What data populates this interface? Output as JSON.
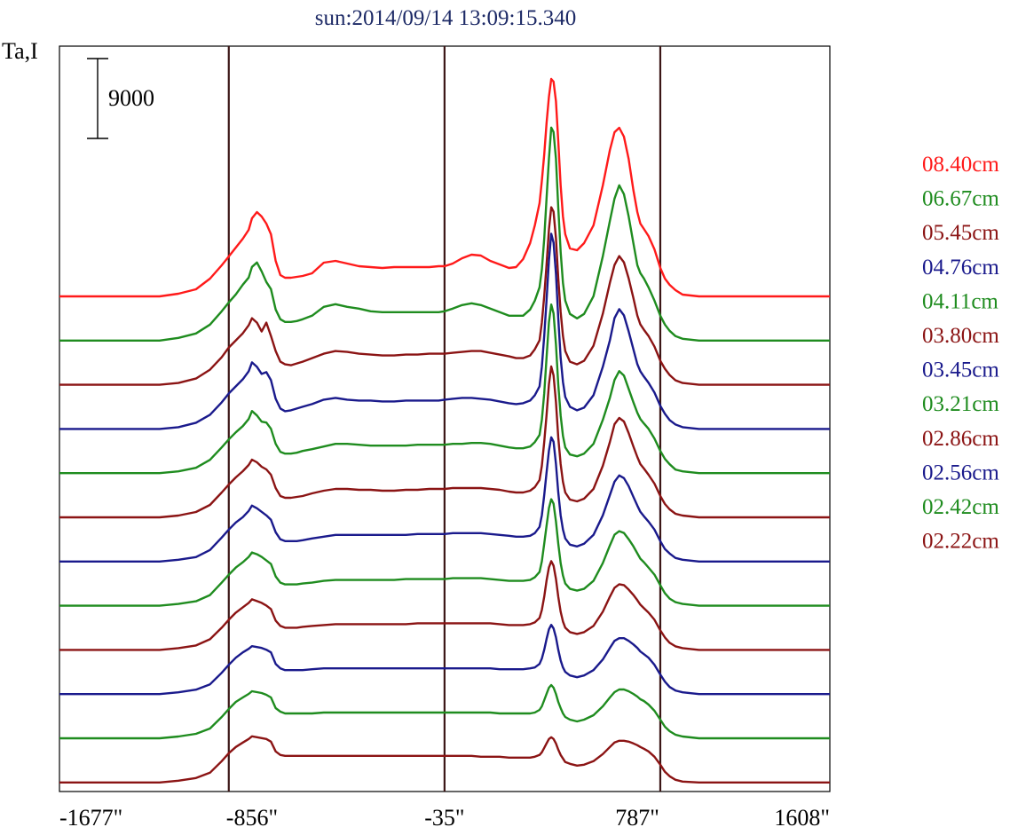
{
  "chart_data": {
    "type": "line",
    "title": "sun:2014/09/14 13:09:15.340",
    "ylabel": "Ta,I",
    "xlabel": "",
    "x_ticks": [
      {
        "value": -1677,
        "label": "-1677\""
      },
      {
        "value": -856,
        "label": "-856\""
      },
      {
        "value": -35,
        "label": "-35\""
      },
      {
        "value": 787,
        "label": "787\""
      },
      {
        "value": 1608,
        "label": "1608\""
      }
    ],
    "xlim": [
      -1677,
      1608
    ],
    "scale_bar": {
      "value": 9000,
      "label": "9000"
    },
    "reference_lines_x": [
      -955,
      -35,
      885
    ],
    "x": [
      -1677,
      -1250,
      -1170,
      -1095,
      -1035,
      -985,
      -955,
      -925,
      -895,
      -870,
      -856,
      -835,
      -815,
      -795,
      -775,
      -755,
      -735,
      -715,
      -690,
      -665,
      -640,
      -600,
      -550,
      -500,
      -450,
      -400,
      -350,
      -300,
      -250,
      -200,
      -150,
      -100,
      -60,
      -35,
      0,
      40,
      80,
      120,
      160,
      200,
      240,
      270,
      300,
      330,
      350,
      370,
      380,
      390,
      400,
      410,
      420,
      430,
      440,
      450,
      460,
      470,
      480,
      500,
      530,
      560,
      600,
      640,
      670,
      690,
      710,
      730,
      750,
      770,
      787,
      800,
      815,
      835,
      860,
      885,
      905,
      925,
      950,
      980,
      1050,
      1150,
      1300,
      1450,
      1608
    ],
    "series": [
      {
        "name": "08.40cm",
        "color": "#ff1a1a",
        "values": [
          0,
          0,
          300,
          800,
          2000,
          3500,
          4500,
          5500,
          6500,
          7500,
          8800,
          9500,
          9000,
          8200,
          7000,
          4000,
          2400,
          2100,
          2100,
          2200,
          2300,
          2600,
          3800,
          4000,
          3700,
          3400,
          3300,
          3200,
          3300,
          3300,
          3300,
          3300,
          3400,
          3400,
          3700,
          4300,
          4700,
          4600,
          4000,
          3600,
          3200,
          3300,
          4200,
          6000,
          8000,
          10500,
          13000,
          16000,
          19500,
          22500,
          24500,
          24200,
          22000,
          17500,
          12500,
          9000,
          7000,
          5400,
          5200,
          6000,
          8000,
          12500,
          16500,
          18500,
          19000,
          18000,
          15500,
          12000,
          9500,
          8200,
          7600,
          6800,
          5300,
          3200,
          2000,
          1300,
          700,
          200,
          0,
          0,
          0,
          0,
          0
        ]
      },
      {
        "name": "06.67cm",
        "color": "#1f8c1f",
        "values": [
          0,
          0,
          300,
          800,
          1800,
          3300,
          4300,
          5200,
          6300,
          7100,
          8300,
          8800,
          7800,
          6600,
          5800,
          3500,
          2400,
          2100,
          2100,
          2200,
          2400,
          2800,
          3800,
          4100,
          3800,
          3600,
          3300,
          3200,
          3200,
          3200,
          3200,
          3200,
          3200,
          3300,
          3600,
          4000,
          4200,
          4000,
          3600,
          3200,
          2800,
          2800,
          2800,
          3500,
          4500,
          6000,
          8000,
          11500,
          16000,
          20500,
          24000,
          23500,
          20500,
          15000,
          10000,
          6500,
          4500,
          3000,
          2500,
          3000,
          5000,
          9500,
          13500,
          16000,
          17500,
          16500,
          14000,
          11000,
          8500,
          7600,
          7000,
          6000,
          4500,
          2800,
          1800,
          1100,
          500,
          200,
          0,
          0,
          0,
          0,
          0
        ]
      },
      {
        "name": "05.45cm",
        "color": "#8b1414",
        "values": [
          0,
          0,
          200,
          700,
          1700,
          3100,
          4200,
          5000,
          5800,
          6700,
          7500,
          7000,
          6000,
          7000,
          5500,
          3800,
          2600,
          2300,
          2200,
          2400,
          2600,
          3000,
          3500,
          3800,
          3700,
          3500,
          3400,
          3300,
          3300,
          3400,
          3400,
          3500,
          3500,
          3500,
          3600,
          3700,
          3800,
          3800,
          3600,
          3400,
          3200,
          3000,
          3000,
          3300,
          4000,
          5000,
          7000,
          10000,
          13500,
          17500,
          20000,
          19500,
          16500,
          12000,
          8200,
          5500,
          3800,
          2600,
          2300,
          2700,
          4400,
          8000,
          11500,
          13500,
          14500,
          13800,
          12000,
          9800,
          7800,
          6800,
          6200,
          5500,
          4300,
          2700,
          1800,
          1100,
          500,
          200,
          0,
          0,
          0,
          0,
          0
        ]
      },
      {
        "name": "04.76cm",
        "color": "#1a1a8c",
        "values": [
          0,
          0,
          200,
          700,
          1600,
          3000,
          4000,
          4800,
          5600,
          6500,
          7500,
          7000,
          6200,
          6400,
          5500,
          3400,
          2300,
          2000,
          2100,
          2300,
          2500,
          2800,
          3300,
          3500,
          3300,
          3200,
          3200,
          3100,
          3100,
          3200,
          3200,
          3200,
          3200,
          3300,
          3400,
          3500,
          3500,
          3400,
          3300,
          3100,
          2900,
          2800,
          2900,
          3200,
          3800,
          4800,
          7000,
          10500,
          14500,
          19000,
          22000,
          21000,
          17500,
          12500,
          8000,
          5300,
          3600,
          2500,
          2100,
          2400,
          3800,
          7000,
          10000,
          12500,
          13500,
          12800,
          11000,
          9000,
          7300,
          6500,
          5900,
          5200,
          4100,
          2600,
          1700,
          1000,
          500,
          200,
          0,
          0,
          0,
          0,
          0
        ]
      },
      {
        "name": "04.11cm",
        "color": "#1f8c1f",
        "values": [
          0,
          0,
          200,
          600,
          1500,
          2900,
          3800,
          4600,
          5300,
          6100,
          7000,
          6500,
          5800,
          5700,
          5000,
          3300,
          2400,
          2200,
          2200,
          2300,
          2500,
          2700,
          3000,
          3300,
          3300,
          3200,
          3100,
          3100,
          3100,
          3100,
          3200,
          3200,
          3200,
          3200,
          3300,
          3300,
          3400,
          3400,
          3300,
          3100,
          2900,
          2800,
          2800,
          3000,
          3500,
          4300,
          6000,
          9000,
          13000,
          17000,
          19000,
          18000,
          14500,
          10000,
          6500,
          4200,
          2900,
          2100,
          1900,
          2200,
          3300,
          6000,
          8500,
          10500,
          11500,
          11000,
          9500,
          8000,
          6800,
          6100,
          5600,
          5000,
          3900,
          2500,
          1600,
          1000,
          400,
          200,
          0,
          0,
          0,
          0,
          0
        ]
      },
      {
        "name": "03.80cm",
        "color": "#8b1414",
        "values": [
          0,
          0,
          200,
          600,
          1400,
          2800,
          3700,
          4500,
          5200,
          5900,
          6500,
          6200,
          5700,
          5400,
          4800,
          3300,
          2400,
          2200,
          2200,
          2300,
          2400,
          2700,
          3000,
          3200,
          3200,
          3100,
          3100,
          3000,
          3000,
          3100,
          3100,
          3200,
          3200,
          3200,
          3300,
          3300,
          3300,
          3300,
          3200,
          3100,
          2900,
          2800,
          2800,
          3000,
          3400,
          4200,
          5800,
          8500,
          11500,
          15000,
          17000,
          16000,
          13000,
          9000,
          6000,
          4000,
          2800,
          2000,
          1800,
          2100,
          3200,
          5800,
          8500,
          10500,
          11200,
          10800,
          9500,
          8000,
          6800,
          6000,
          5500,
          4800,
          3800,
          2400,
          1500,
          900,
          400,
          200,
          0,
          0,
          0,
          0,
          0
        ]
      },
      {
        "name": "03.45cm",
        "color": "#1a1a8c",
        "values": [
          0,
          0,
          200,
          500,
          1300,
          2700,
          3600,
          4400,
          5000,
          5700,
          6300,
          6000,
          5600,
          5200,
          4700,
          3300,
          2500,
          2300,
          2300,
          2300,
          2400,
          2600,
          2800,
          3000,
          3000,
          3000,
          3000,
          3000,
          3000,
          3000,
          3100,
          3100,
          3100,
          3100,
          3200,
          3200,
          3200,
          3200,
          3100,
          3000,
          2900,
          2800,
          2800,
          2900,
          3200,
          3900,
          5200,
          7500,
          10000,
          12500,
          14000,
          13500,
          11000,
          7800,
          5200,
          3600,
          2600,
          1900,
          1700,
          2000,
          3000,
          5200,
          7500,
          9000,
          9700,
          9400,
          8500,
          7300,
          6300,
          5600,
          5100,
          4500,
          3600,
          2300,
          1400,
          900,
          400,
          200,
          0,
          0,
          0,
          0,
          0
        ]
      },
      {
        "name": "03.21cm",
        "color": "#1f8c1f",
        "values": [
          0,
          0,
          200,
          500,
          1200,
          2600,
          3500,
          4300,
          4900,
          5500,
          6000,
          5800,
          5500,
          5100,
          4700,
          3300,
          2600,
          2400,
          2400,
          2400,
          2500,
          2600,
          2800,
          2900,
          2900,
          2900,
          2900,
          2900,
          2900,
          3000,
          3000,
          3000,
          3000,
          3000,
          3100,
          3100,
          3100,
          3100,
          3000,
          2900,
          2800,
          2800,
          2800,
          2900,
          3200,
          3800,
          5000,
          7000,
          9000,
          11000,
          12000,
          11500,
          9500,
          7000,
          4800,
          3400,
          2500,
          1900,
          1700,
          1900,
          2800,
          4800,
          6800,
          8000,
          8400,
          8200,
          7500,
          6700,
          5900,
          5300,
          4900,
          4300,
          3500,
          2300,
          1400,
          800,
          400,
          200,
          0,
          0,
          0,
          0,
          0
        ]
      },
      {
        "name": "02.86cm",
        "color": "#8b1414",
        "values": [
          0,
          0,
          200,
          500,
          1200,
          2500,
          3400,
          4200,
          4800,
          5300,
          5700,
          5500,
          5300,
          5000,
          4600,
          3300,
          2700,
          2500,
          2500,
          2500,
          2600,
          2700,
          2800,
          2900,
          2900,
          2900,
          2900,
          2900,
          2900,
          2900,
          3000,
          3000,
          3000,
          3000,
          3000,
          3000,
          3000,
          3000,
          3000,
          2900,
          2800,
          2800,
          2800,
          2900,
          3100,
          3600,
          4500,
          6000,
          7800,
          9300,
          10000,
          9500,
          8000,
          6000,
          4300,
          3200,
          2500,
          2000,
          1800,
          2000,
          2700,
          4300,
          6000,
          7000,
          7400,
          7300,
          6800,
          6200,
          5600,
          5100,
          4700,
          4200,
          3400,
          2200,
          1400,
          800,
          400,
          200,
          0,
          0,
          0,
          0,
          0
        ]
      },
      {
        "name": "02.56cm",
        "color": "#1a1a8c",
        "values": [
          0,
          0,
          200,
          500,
          1100,
          2400,
          3300,
          4100,
          4700,
          5100,
          5400,
          5300,
          5200,
          5000,
          4700,
          3400,
          2900,
          2700,
          2700,
          2700,
          2700,
          2800,
          2900,
          2900,
          2900,
          2900,
          2900,
          2900,
          2900,
          2900,
          2900,
          2900,
          2900,
          2900,
          2900,
          2900,
          2900,
          2900,
          2900,
          2800,
          2800,
          2800,
          2800,
          2900,
          3000,
          3400,
          4000,
          5000,
          6200,
          7300,
          7800,
          7400,
          6400,
          5000,
          3800,
          3000,
          2500,
          2100,
          1900,
          2100,
          2700,
          3900,
          5200,
          6000,
          6300,
          6300,
          6000,
          5600,
          5200,
          4800,
          4500,
          4100,
          3300,
          2200,
          1400,
          800,
          400,
          200,
          0,
          0,
          0,
          0,
          0
        ]
      },
      {
        "name": "02.42cm",
        "color": "#1f8c1f",
        "values": [
          0,
          0,
          200,
          500,
          1100,
          2400,
          3300,
          4100,
          4600,
          5000,
          5300,
          5200,
          5100,
          4900,
          4600,
          3400,
          3000,
          2800,
          2800,
          2800,
          2800,
          2800,
          2900,
          2900,
          2900,
          2900,
          2900,
          2900,
          2900,
          2900,
          2900,
          2900,
          2900,
          2900,
          2900,
          2900,
          2900,
          2900,
          2900,
          2800,
          2800,
          2800,
          2800,
          2800,
          2900,
          3200,
          3600,
          4300,
          5000,
          5700,
          6000,
          5700,
          5000,
          4100,
          3400,
          2800,
          2400,
          2100,
          1900,
          2100,
          2600,
          3600,
          4600,
          5200,
          5500,
          5500,
          5300,
          5000,
          4700,
          4400,
          4200,
          3800,
          3100,
          2100,
          1300,
          800,
          400,
          200,
          0,
          0,
          0,
          0,
          0
        ]
      },
      {
        "name": "02.22cm",
        "color": "#8b1414",
        "values": [
          0,
          0,
          200,
          500,
          1100,
          2400,
          3300,
          4000,
          4500,
          4900,
          5200,
          5100,
          5000,
          4900,
          4600,
          3500,
          3100,
          3000,
          3000,
          3000,
          3000,
          3000,
          3000,
          3000,
          3000,
          3000,
          3000,
          3000,
          3000,
          3000,
          3000,
          3000,
          3000,
          3000,
          3000,
          3000,
          3000,
          2900,
          2900,
          2900,
          2800,
          2800,
          2800,
          2800,
          2900,
          3100,
          3400,
          3900,
          4400,
          4900,
          5100,
          4900,
          4400,
          3700,
          3100,
          2700,
          2300,
          2100,
          1900,
          2000,
          2400,
          3200,
          4000,
          4500,
          4700,
          4700,
          4600,
          4400,
          4200,
          4000,
          3800,
          3500,
          2900,
          2000,
          1200,
          700,
          300,
          100,
          0,
          0,
          0,
          0,
          0
        ]
      }
    ],
    "grid": false,
    "legend": "right"
  }
}
